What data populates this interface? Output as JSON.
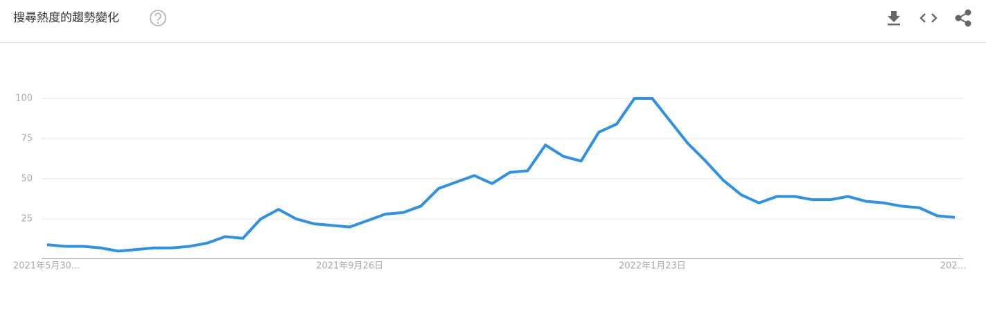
{
  "chart_data": {
    "type": "line",
    "title": "搜尋熱度的趨勢變化",
    "categories": [
      "2021年5月30...",
      null,
      null,
      null,
      null,
      null,
      null,
      null,
      null,
      null,
      null,
      null,
      null,
      null,
      null,
      null,
      null,
      "2021年9月26日",
      null,
      null,
      null,
      null,
      null,
      null,
      null,
      null,
      null,
      null,
      null,
      null,
      null,
      null,
      null,
      null,
      "2022年1月23日",
      null,
      null,
      null,
      null,
      null,
      null,
      null,
      null,
      null,
      null,
      null,
      null,
      null,
      null,
      null,
      null,
      "202..."
    ],
    "series": [
      {
        "color": "#2d92e6",
        "values": [
          9,
          8,
          8,
          7,
          5,
          6,
          7,
          7,
          8,
          10,
          14,
          13,
          25,
          31,
          25,
          22,
          21,
          20,
          24,
          28,
          29,
          33,
          44,
          48,
          52,
          47,
          54,
          55,
          71,
          64,
          61,
          79,
          84,
          100,
          100,
          86,
          72,
          61,
          49,
          40,
          35,
          39,
          39,
          37,
          37,
          39,
          36,
          35,
          33,
          32,
          27,
          26
        ]
      }
    ],
    "ylim": [
      0,
      100
    ],
    "yticks": [
      25,
      50,
      75,
      100
    ],
    "grid": true
  }
}
